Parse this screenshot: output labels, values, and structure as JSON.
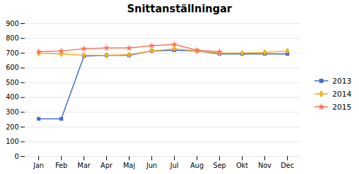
{
  "chart_data": {
    "type": "line",
    "title": "Snittanställningar",
    "categories": [
      "Jan",
      "Feb",
      "Mar",
      "Apr",
      "Maj",
      "Jun",
      "Jul",
      "Aug",
      "Sep",
      "Okt",
      "Nov",
      "Dec"
    ],
    "series": [
      {
        "name": "2013",
        "marker": "square",
        "values": [
          255,
          255,
          680,
          685,
          685,
          715,
          720,
          715,
          695,
          695,
          695,
          695
        ]
      },
      {
        "name": "2014",
        "marker": "diamond",
        "values": [
          700,
          695,
          685,
          685,
          690,
          715,
          730,
          715,
          700,
          700,
          705,
          715
        ]
      },
      {
        "name": "2015",
        "marker": "star",
        "values": [
          710,
          715,
          730,
          735,
          735,
          750,
          760,
          720,
          710,
          null,
          null,
          null
        ]
      }
    ],
    "ylim": [
      0,
      900
    ],
    "yticks": [
      0,
      100,
      200,
      300,
      400,
      500,
      600,
      700,
      800,
      900
    ],
    "grid": true,
    "legend": "right"
  }
}
